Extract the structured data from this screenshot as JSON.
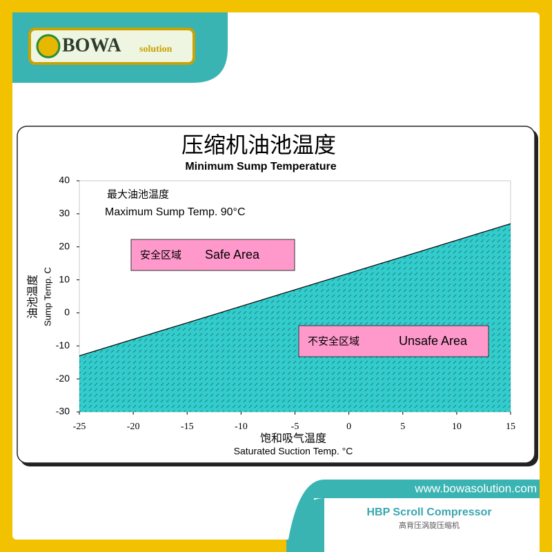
{
  "branding": {
    "logo": "BOWA",
    "logo_sub": "solution",
    "website": "www.bowasolution.com",
    "product": "HBP Scroll Compressor",
    "product_cn": "高背压涡旋压缩机"
  },
  "chart_data": {
    "type": "area",
    "title": "压缩机油池温度",
    "subtitle": "Minimum Sump Temperature",
    "x_label_cn": "饱和吸气温度",
    "x_label": "Saturated Suction Temp.  °C",
    "y_label_cn": "油池温度",
    "y_label": "Sump Temp.  C",
    "x": [
      -25,
      15
    ],
    "values": [
      -13,
      27
    ],
    "color": "#33cccc",
    "xlim": [
      -25,
      15
    ],
    "xticks": [
      -25,
      -20,
      -15,
      -10,
      -5,
      0,
      5,
      10,
      15
    ],
    "ylim": [
      -30,
      40
    ],
    "yticks": [
      -30,
      -20,
      -10,
      0,
      10,
      20,
      30,
      40
    ],
    "annotations": {
      "max_cn": "最大油池温度",
      "max": "Maximum Sump Temp.  90°C",
      "safe_cn": "安全区域",
      "safe": "Safe Area",
      "unsafe_cn": "不安全区域",
      "unsafe": "Unsafe Area"
    }
  }
}
